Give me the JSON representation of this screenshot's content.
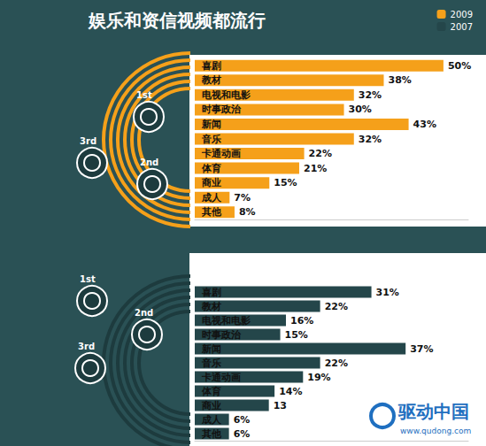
{
  "chart_data": [
    {
      "type": "bar",
      "title": "娱乐和资信视频都流行",
      "orientation": "horizontal",
      "categories": [
        "喜剧",
        "教材",
        "电视和电影",
        "时事政治",
        "新闻",
        "音乐",
        "卡通动画",
        "体育",
        "商业",
        "成人",
        "其他"
      ],
      "series": [
        {
          "name": "2009",
          "color": "#f5a01a",
          "values": [
            50,
            38,
            32,
            30,
            43,
            32,
            22,
            21,
            15,
            7,
            8
          ],
          "value_labels": [
            "50%",
            "38%",
            "32%",
            "30%",
            "43%",
            "32%",
            "22%",
            "21%",
            "15%",
            "7%",
            "8%"
          ]
        }
      ],
      "xlim": [
        0,
        55
      ],
      "tick_labels": "y",
      "data_labels": true,
      "grid": false,
      "legend": "top-right",
      "annotations": [
        "1st",
        "2nd",
        "3rd"
      ]
    },
    {
      "type": "bar",
      "orientation": "horizontal",
      "categories": [
        "喜剧",
        "教材",
        "电视和电影",
        "时事政治",
        "新闻",
        "音乐",
        "卡通动画",
        "体育",
        "商业",
        "成人",
        "其他"
      ],
      "series": [
        {
          "name": "2007",
          "color": "#24464a",
          "values": [
            31,
            22,
            16,
            15,
            37,
            22,
            19,
            14,
            13,
            6,
            6
          ],
          "value_labels": [
            "31%",
            "22%",
            "16%",
            "15%",
            "37%",
            "22%",
            "19%",
            "14%",
            "13",
            "6%",
            "6%"
          ]
        }
      ],
      "xlim": [
        0,
        48
      ],
      "tick_labels": "y",
      "data_labels": true,
      "grid": false,
      "legend": "top-right",
      "annotations": [
        "1st",
        "2nd",
        "3rd"
      ],
      "watermark": [
        "驱动中国",
        "www.qudong.com"
      ]
    }
  ]
}
